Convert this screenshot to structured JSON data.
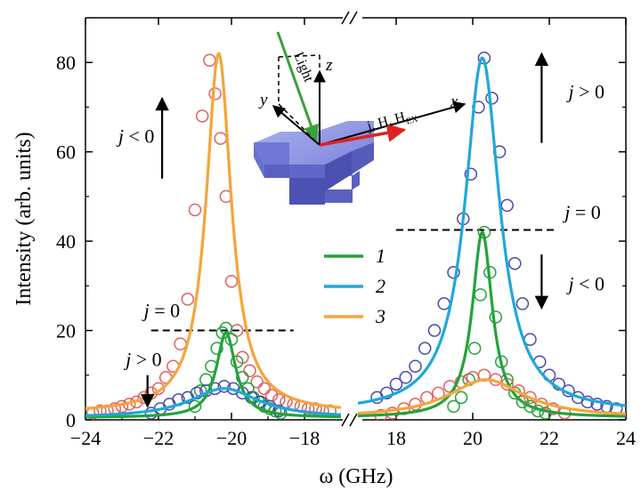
{
  "chart_data": {
    "type": "line",
    "xlabel": "ω (GHz)",
    "ylabel": "Intensity (arb. units)",
    "panels": [
      {
        "name": "left",
        "xlim": [
          -24,
          -17
        ],
        "xticks": [
          -24,
          -22,
          -20,
          -18
        ]
      },
      {
        "name": "right",
        "xlim": [
          17,
          24
        ],
        "xticks": [
          18,
          20,
          22,
          24
        ]
      }
    ],
    "ylim": [
      0,
      90
    ],
    "yticks": [
      0,
      20,
      40,
      60,
      80
    ],
    "legend": {
      "placement": "center",
      "entries": [
        {
          "label": "1",
          "color": "#22a33a"
        },
        {
          "label": "2",
          "color": "#1ea8dc"
        },
        {
          "label": "3",
          "color": "#f4a53a"
        }
      ]
    },
    "fit_curves": [
      {
        "name": "1",
        "panel": "left",
        "color": "#22a33a",
        "center": -20.15,
        "peak": 19.5,
        "hwhm": 0.32,
        "baseline": 0.5
      },
      {
        "name": "2",
        "panel": "left",
        "color": "#1ea8dc",
        "center": -20.2,
        "peak": 7,
        "hwhm": 1.15,
        "baseline": 0.4
      },
      {
        "name": "3",
        "panel": "left",
        "color": "#f4a53a",
        "center": -20.35,
        "peak": 82,
        "hwhm": 0.42,
        "baseline": 1.5
      },
      {
        "name": "1",
        "panel": "right",
        "color": "#22a33a",
        "center": 20.25,
        "peak": 42,
        "hwhm": 0.32,
        "baseline": 0.5
      },
      {
        "name": "2",
        "panel": "right",
        "color": "#1ea8dc",
        "center": 20.25,
        "peak": 81,
        "hwhm": 0.55,
        "baseline": 1.5
      },
      {
        "name": "3",
        "panel": "right",
        "color": "#f4a53a",
        "center": 20.35,
        "peak": 9,
        "hwhm": 1.2,
        "baseline": 0.5
      }
    ],
    "data_points": [
      {
        "panel": "left",
        "color": "#e06060",
        "x": [
          -23.8,
          -23.6,
          -23.4,
          -23.2,
          -23.0,
          -22.8,
          -22.6,
          -22.4,
          -22.2,
          -22.0,
          -21.8,
          -21.6,
          -21.4,
          -21.2,
          -21.0,
          -20.8,
          -20.6,
          -20.45,
          -20.3,
          -20.15,
          -20.0,
          -19.85,
          -19.7,
          -19.5,
          -19.3,
          -19.1,
          -18.9,
          -18.7,
          -18.5,
          -18.3,
          -18.1,
          -17.9,
          -17.7,
          -17.5,
          -17.3
        ],
        "y": [
          1.5,
          2,
          2,
          2.5,
          3,
          3.5,
          4,
          5,
          6,
          7,
          9.5,
          12,
          17,
          27,
          47,
          68,
          80.5,
          73,
          63,
          50,
          31,
          20,
          14,
          11,
          8.5,
          7,
          5.5,
          4.5,
          4,
          3.5,
          3,
          2.5,
          2.5,
          2,
          2
        ]
      },
      {
        "panel": "left",
        "color": "#22a33a",
        "x": [
          -21.0,
          -20.85,
          -20.7,
          -20.55,
          -20.4,
          -20.25,
          -20.15,
          -20.0,
          -19.85,
          -19.7,
          -19.55,
          -19.4,
          -19.25,
          -19.1,
          -18.95,
          -18.8,
          -18.65
        ],
        "y": [
          3,
          6.5,
          9,
          12,
          16,
          19.5,
          20.5,
          18,
          13,
          9.5,
          7,
          5,
          4,
          3,
          2.5,
          2,
          1.5
        ]
      },
      {
        "panel": "left",
        "color": "#4a4aa8",
        "x": [
          -22.2,
          -21.95,
          -21.7,
          -21.45,
          -21.2,
          -20.95,
          -20.7,
          -20.45,
          -20.2,
          -19.95,
          -19.7,
          -19.45,
          -19.2,
          -18.95,
          -18.7
        ],
        "y": [
          1.5,
          2.5,
          3.5,
          4.5,
          5,
          6,
          6.5,
          7,
          7.5,
          7,
          6,
          5,
          4,
          3,
          2
        ]
      },
      {
        "panel": "right",
        "color": "#4a4aa8",
        "x": [
          17.5,
          17.75,
          18.0,
          18.25,
          18.5,
          18.75,
          19.0,
          19.25,
          19.5,
          19.75,
          19.95,
          20.15,
          20.3,
          20.5,
          20.7,
          20.9,
          21.1,
          21.3,
          21.5,
          21.75,
          22.0,
          22.25,
          22.5,
          22.75,
          23.0,
          23.25,
          23.5,
          23.75
        ],
        "y": [
          5,
          6,
          8,
          9.5,
          12,
          16,
          20,
          26,
          33,
          45,
          55,
          70,
          81,
          72,
          60,
          48,
          35,
          26,
          18,
          13,
          10,
          8,
          6.5,
          5,
          4,
          3.5,
          3,
          2.5
        ]
      },
      {
        "panel": "right",
        "color": "#22a33a",
        "x": [
          19.5,
          19.7,
          19.9,
          20.05,
          20.2,
          20.3,
          20.45,
          20.6,
          20.75,
          20.9,
          21.1,
          21.3,
          21.5,
          21.7,
          21.9
        ],
        "y": [
          3,
          5,
          9,
          16,
          28,
          42,
          33,
          23,
          13,
          9,
          6,
          4,
          3,
          2,
          1.5
        ]
      },
      {
        "panel": "right",
        "color": "#e06060",
        "x": [
          17.6,
          17.9,
          18.2,
          18.5,
          18.8,
          19.1,
          19.4,
          19.7,
          20.0,
          20.3,
          20.6,
          20.9,
          21.2,
          21.5,
          21.8,
          22.1,
          22.4
        ],
        "y": [
          1,
          1.5,
          2.5,
          3.5,
          5,
          6,
          7.5,
          8.5,
          9.5,
          10,
          9,
          8,
          6.5,
          5,
          3.5,
          2.5,
          1.5
        ]
      }
    ],
    "annotations": [
      {
        "text": "j < 0",
        "panel": "left",
        "x": -23.1,
        "y": 62,
        "arrow": "up"
      },
      {
        "text": "j = 0",
        "panel": "left",
        "x": -22.4,
        "y": 23,
        "dashed_line": {
          "x": [
            -22.2,
            -18.3
          ],
          "y": 20
        }
      },
      {
        "text": "j > 0",
        "panel": "left",
        "x": -22.9,
        "y": 12,
        "arrow": "down"
      },
      {
        "text": "j > 0",
        "panel": "right",
        "x": 22.5,
        "y": 72,
        "arrow": "up"
      },
      {
        "text": "j = 0",
        "panel": "right",
        "x": 22.4,
        "y": 45,
        "dashed_line": {
          "x": [
            18.0,
            22.2
          ],
          "y": 42.5
        }
      },
      {
        "text": "j < 0",
        "panel": "right",
        "x": 22.5,
        "y": 29,
        "arrow": "down"
      }
    ],
    "inset": {
      "labels": {
        "light": "Light",
        "z": "z",
        "y": "y",
        "x": "x",
        "current": "j, H, H",
        "current_sub": "EX"
      }
    }
  }
}
